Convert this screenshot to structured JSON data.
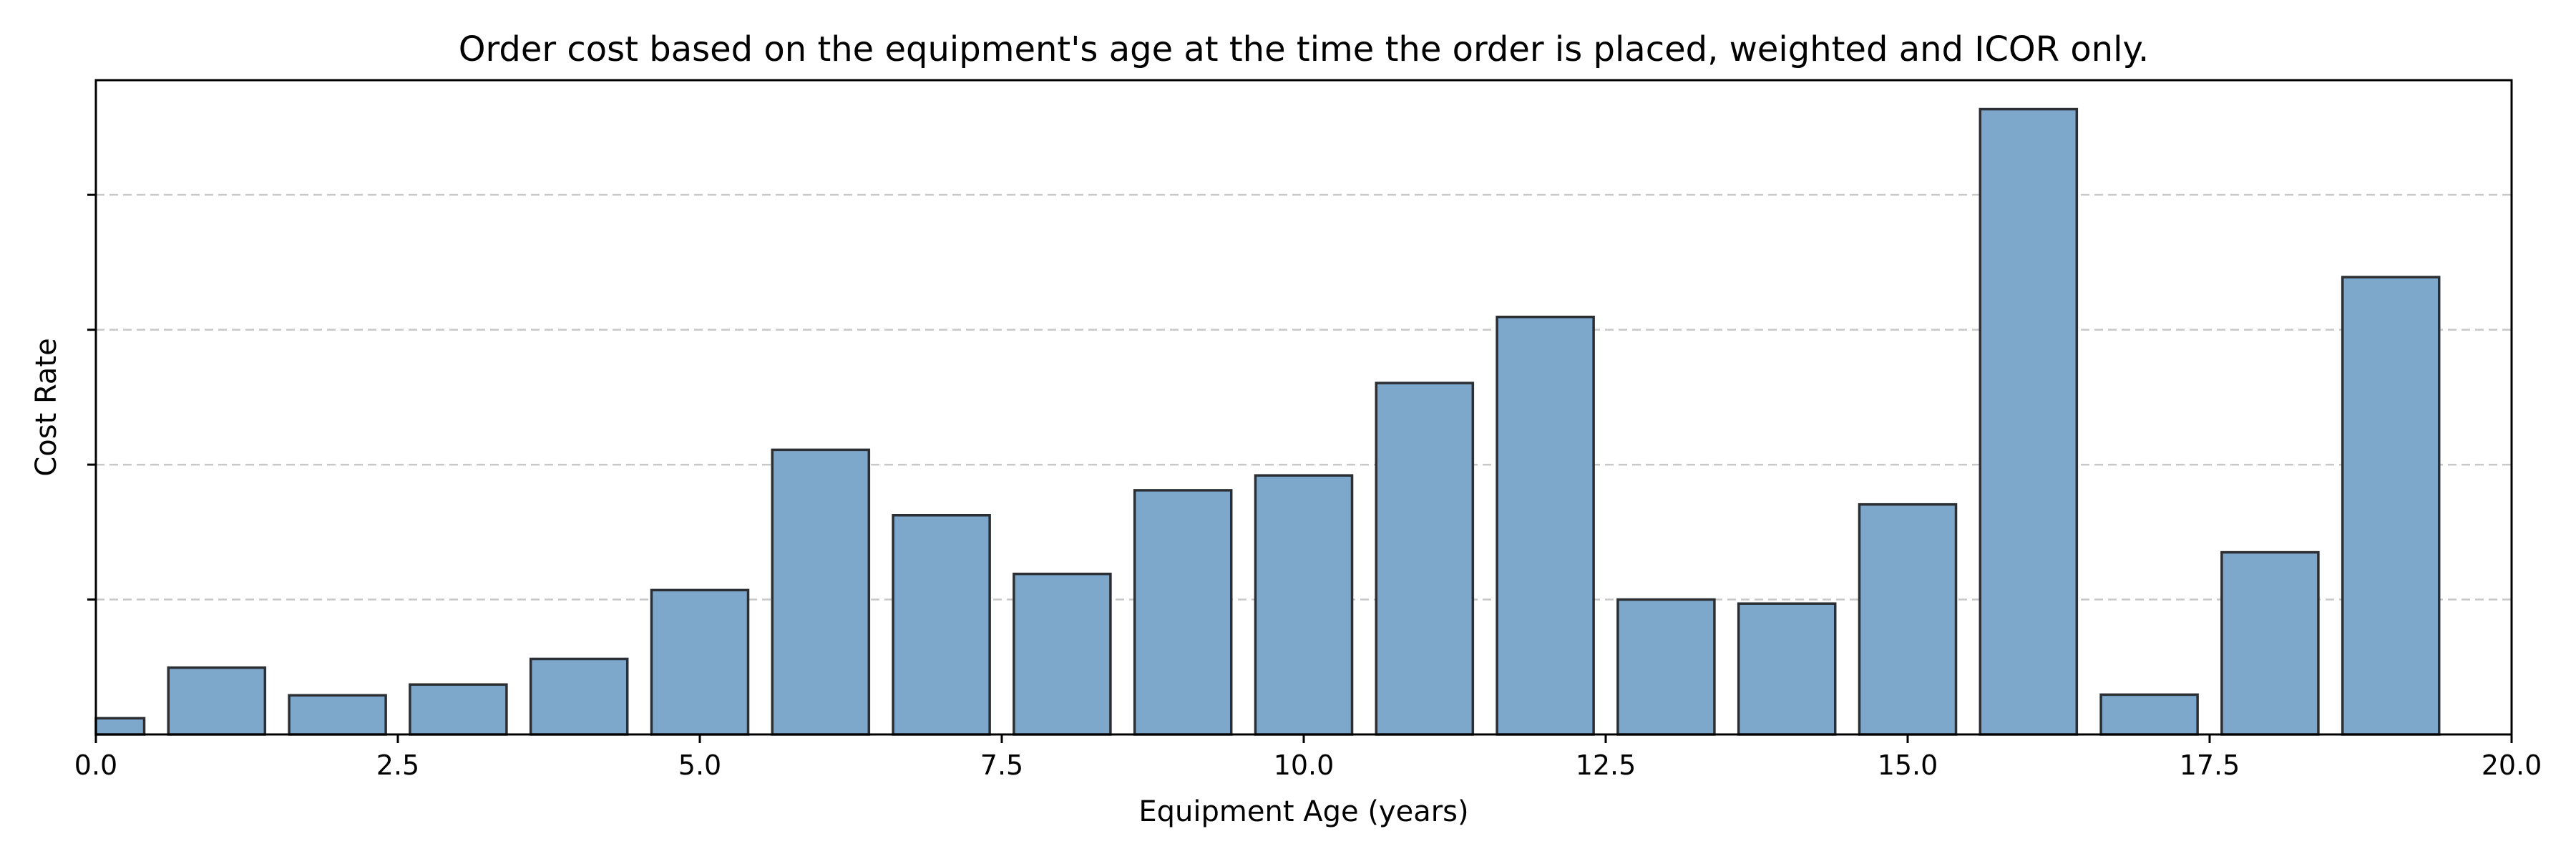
{
  "chart_data": {
    "type": "bar",
    "title": "Order cost based on the equipment's age at the time the order is placed, weighted and ICOR only.",
    "xlabel": "Equipment Age (years)",
    "ylabel": "Cost Rate",
    "bar_width": 0.8,
    "x": [
      0,
      1,
      2,
      3,
      4,
      5,
      6,
      7,
      8,
      9,
      10,
      11,
      12,
      13,
      14,
      15,
      16,
      17,
      18,
      19,
      20
    ],
    "values": [
      0.024,
      0.099,
      0.058,
      0.074,
      0.112,
      0.214,
      0.422,
      0.325,
      0.238,
      0.362,
      0.384,
      0.521,
      0.619,
      0.2,
      0.194,
      0.341,
      0.927,
      0.059,
      0.27,
      0.678,
      0.0
    ],
    "xlim": [
      0,
      20
    ],
    "ylim": [
      0,
      0.97
    ],
    "xticks": [
      0,
      2.5,
      5,
      7.5,
      10,
      12.5,
      15,
      17.5,
      20
    ],
    "xtick_labels": [
      "0.0",
      "2.5",
      "5.0",
      "7.5",
      "10.0",
      "12.5",
      "15.0",
      "17.5",
      "20.0"
    ],
    "yticks": [
      0.2,
      0.4,
      0.6,
      0.8
    ],
    "ytick_labels_shown": false,
    "grid": "y",
    "colors": {
      "bar_fill": "#7ea7cc",
      "bar_edge": "#2b2f33",
      "grid": "#c8c8c8"
    }
  }
}
